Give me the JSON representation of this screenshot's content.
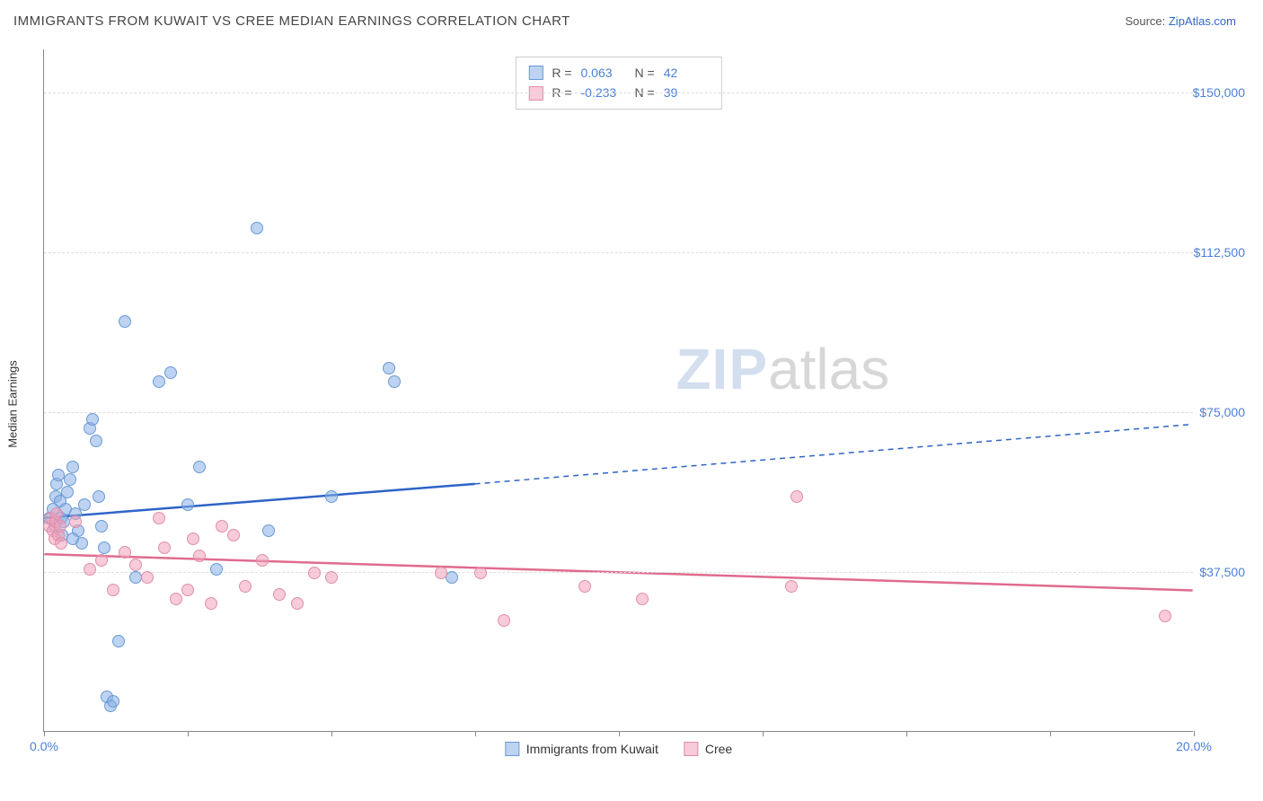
{
  "header": {
    "title": "IMMIGRANTS FROM KUWAIT VS CREE MEDIAN EARNINGS CORRELATION CHART",
    "source_prefix": "Source: ",
    "source_link": "ZipAtlas.com"
  },
  "watermark": {
    "zip": "ZIP",
    "atlas": "atlas"
  },
  "chart": {
    "type": "scatter",
    "ylabel": "Median Earnings",
    "xlim": [
      0,
      20
    ],
    "ylim": [
      0,
      160000
    ],
    "background_color": "#ffffff",
    "grid_color": "#dddddd",
    "axis_color": "#888888",
    "tick_color": "#4a7fd8",
    "yticks": [
      {
        "value": 37500,
        "label": "$37,500"
      },
      {
        "value": 75000,
        "label": "$75,000"
      },
      {
        "value": 112500,
        "label": "$112,500"
      },
      {
        "value": 150000,
        "label": "$150,000"
      }
    ],
    "xticks": [
      {
        "value": 0,
        "label": "0.0%"
      },
      {
        "value": 2.5,
        "label": ""
      },
      {
        "value": 5,
        "label": ""
      },
      {
        "value": 7.5,
        "label": ""
      },
      {
        "value": 10,
        "label": ""
      },
      {
        "value": 12.5,
        "label": ""
      },
      {
        "value": 15,
        "label": ""
      },
      {
        "value": 17.5,
        "label": ""
      },
      {
        "value": 20,
        "label": "20.0%"
      }
    ],
    "series": [
      {
        "key": "kuwait",
        "label": "Immigrants from Kuwait",
        "fill_color": "rgba(135,175,230,0.55)",
        "stroke_color": "#6a9ad4",
        "line_color": "#2d63c8",
        "stats": {
          "R": "0.063",
          "N": "42"
        },
        "trend": {
          "x1": 0,
          "y1": 50000,
          "x2_solid": 7.5,
          "y2_solid": 58000,
          "x2": 20,
          "y2": 72000
        },
        "points": [
          [
            0.1,
            50000
          ],
          [
            0.15,
            52000
          ],
          [
            0.18,
            48000
          ],
          [
            0.2,
            55000
          ],
          [
            0.22,
            58000
          ],
          [
            0.25,
            60000
          ],
          [
            0.28,
            54000
          ],
          [
            0.3,
            50000
          ],
          [
            0.32,
            46000
          ],
          [
            0.35,
            49000
          ],
          [
            0.38,
            52000
          ],
          [
            0.4,
            56000
          ],
          [
            0.45,
            59000
          ],
          [
            0.5,
            62000
          ],
          [
            0.55,
            51000
          ],
          [
            0.6,
            47000
          ],
          [
            0.65,
            44000
          ],
          [
            0.7,
            53000
          ],
          [
            0.8,
            71000
          ],
          [
            0.85,
            73000
          ],
          [
            0.9,
            68000
          ],
          [
            0.95,
            55000
          ],
          [
            1.0,
            48000
          ],
          [
            1.05,
            43000
          ],
          [
            1.1,
            8000
          ],
          [
            1.15,
            6000
          ],
          [
            1.2,
            7000
          ],
          [
            1.3,
            21000
          ],
          [
            1.4,
            96000
          ],
          [
            1.6,
            36000
          ],
          [
            2.0,
            82000
          ],
          [
            2.2,
            84000
          ],
          [
            2.5,
            53000
          ],
          [
            2.7,
            62000
          ],
          [
            3.0,
            38000
          ],
          [
            3.7,
            118000
          ],
          [
            3.9,
            47000
          ],
          [
            5.0,
            55000
          ],
          [
            6.0,
            85000
          ],
          [
            6.1,
            82000
          ],
          [
            7.1,
            36000
          ],
          [
            0.5,
            45000
          ]
        ]
      },
      {
        "key": "cree",
        "label": "Cree",
        "fill_color": "rgba(240,160,185,0.55)",
        "stroke_color": "#e08fa8",
        "line_color": "#e06b8f",
        "stats": {
          "R": "-0.233",
          "N": "39"
        },
        "trend": {
          "x1": 0,
          "y1": 41500,
          "x2_solid": 20,
          "y2_solid": 33000,
          "x2": 20,
          "y2": 33000
        },
        "points": [
          [
            0.1,
            48000
          ],
          [
            0.12,
            50000
          ],
          [
            0.15,
            47000
          ],
          [
            0.18,
            45000
          ],
          [
            0.2,
            49000
          ],
          [
            0.22,
            51000
          ],
          [
            0.25,
            46000
          ],
          [
            0.28,
            48000
          ],
          [
            0.3,
            44000
          ],
          [
            0.55,
            49000
          ],
          [
            0.8,
            38000
          ],
          [
            1.0,
            40000
          ],
          [
            1.2,
            33000
          ],
          [
            1.4,
            42000
          ],
          [
            1.6,
            39000
          ],
          [
            1.8,
            36000
          ],
          [
            2.1,
            43000
          ],
          [
            2.3,
            31000
          ],
          [
            2.5,
            33000
          ],
          [
            2.6,
            45000
          ],
          [
            2.7,
            41000
          ],
          [
            2.9,
            30000
          ],
          [
            3.1,
            48000
          ],
          [
            3.3,
            46000
          ],
          [
            3.5,
            34000
          ],
          [
            3.8,
            40000
          ],
          [
            4.1,
            32000
          ],
          [
            4.4,
            30000
          ],
          [
            4.7,
            37000
          ],
          [
            5.0,
            36000
          ],
          [
            6.9,
            37000
          ],
          [
            7.6,
            37000
          ],
          [
            8.0,
            26000
          ],
          [
            9.4,
            34000
          ],
          [
            10.4,
            31000
          ],
          [
            13.1,
            55000
          ],
          [
            13.0,
            34000
          ],
          [
            19.5,
            27000
          ],
          [
            2.0,
            50000
          ]
        ]
      }
    ],
    "stats_legend_labels": {
      "R": "R =",
      "N": "N ="
    },
    "marker_radius": 7
  }
}
